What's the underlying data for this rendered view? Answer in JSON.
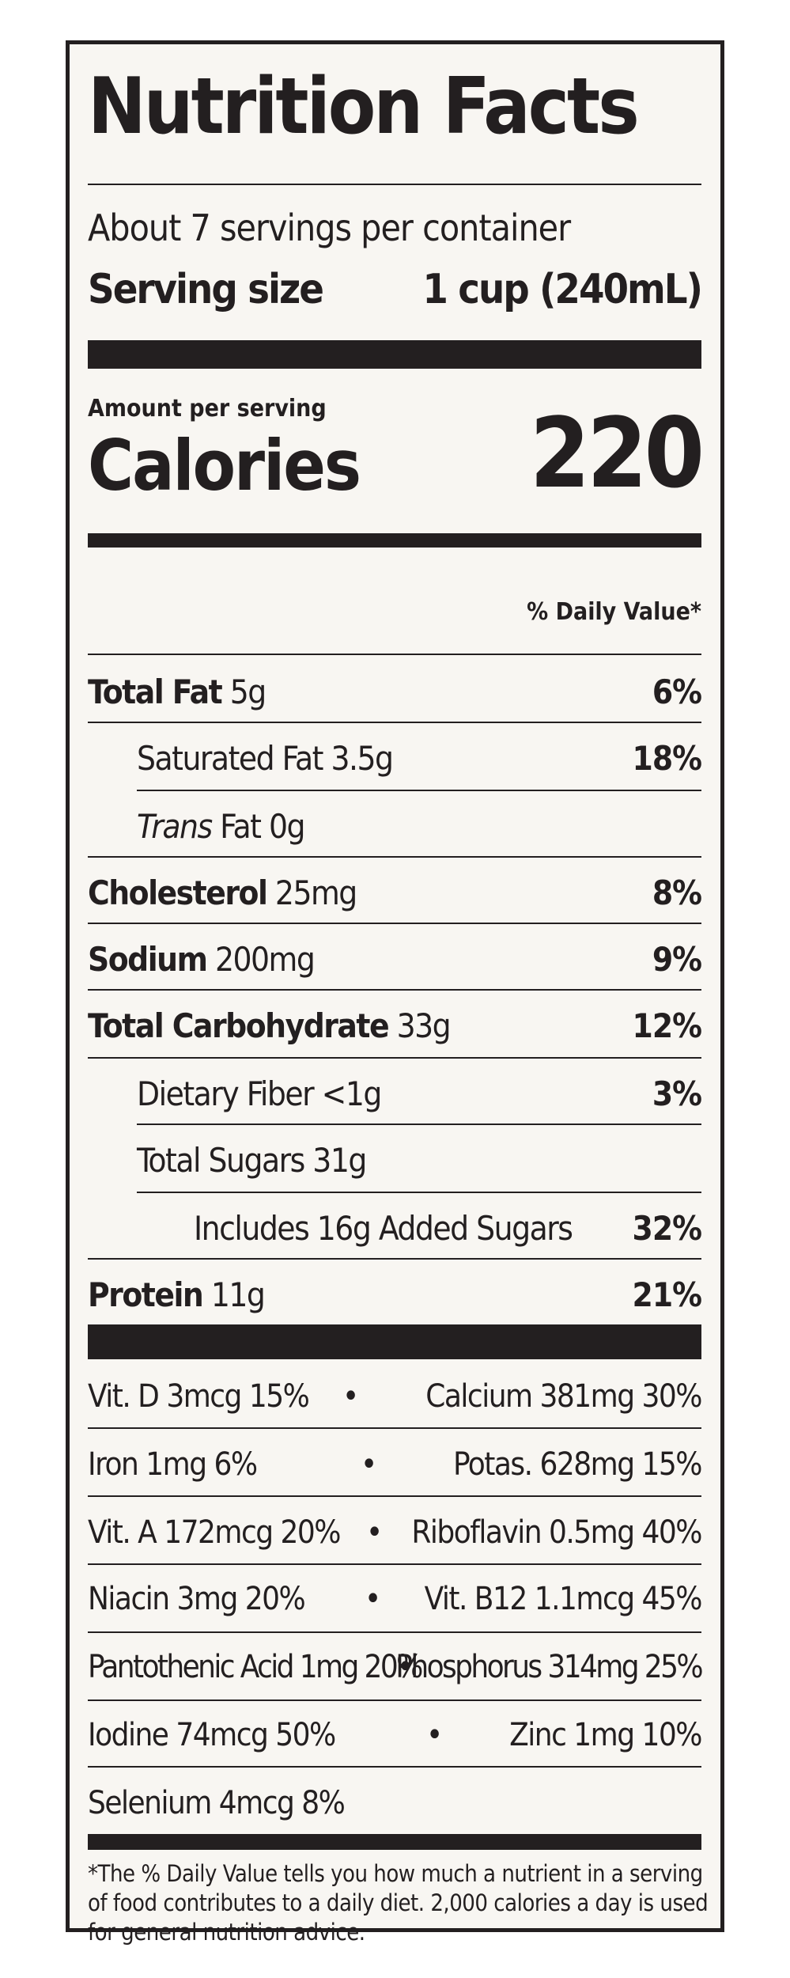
{
  "title": "Nutrition Facts",
  "servings_per_container": "About 7 servings per container",
  "serving_size": {
    "label": "Serving size",
    "value": "1 cup (240mL)"
  },
  "amount_per_serving": "Amount per serving",
  "calories": {
    "label": "Calories",
    "value": "220"
  },
  "daily_value_header": "% Daily Value*",
  "nutrients": [
    {
      "name": "Total Fat",
      "amount": " 5g",
      "dv": "6%"
    },
    {
      "name": "Saturated Fat",
      "amount": " 3.5g",
      "dv": "18%"
    },
    {
      "name": "Trans",
      "amount": " Fat 0g",
      "dv": ""
    },
    {
      "name": "Cholesterol",
      "amount": " 25mg",
      "dv": "8%"
    },
    {
      "name": "Sodium",
      "amount": " 200mg",
      "dv": "9%"
    },
    {
      "name": "Total Carbohydrate",
      "amount": " 33g",
      "dv": "12%"
    },
    {
      "name": "Dietary Fiber",
      "amount": " <1g",
      "dv": "3%"
    },
    {
      "name": "Total Sugars",
      "amount": " 31g",
      "dv": ""
    },
    {
      "name": "Includes 16g Added Sugars",
      "amount": "",
      "dv": "32%"
    },
    {
      "name": "Protein",
      "amount": " 11g",
      "dv": "21%"
    }
  ],
  "vitamins": [
    {
      "left": "Vit. D 3mcg 15%",
      "dot": "•",
      "right": "Calcium 381mg 30%"
    },
    {
      "left": "Iron 1mg 6%",
      "dot": "•",
      "right": "Potas. 628mg 15%"
    },
    {
      "left": "Vit. A 172mcg 20%",
      "dot": "•",
      "right": "Riboflavin 0.5mg 40%"
    },
    {
      "left": "Niacin 3mg 20%",
      "dot": "•",
      "right": "Vit. B12 1.1mcg 45%"
    },
    {
      "left": "Pantothenic Acid 1mg 20%",
      "dot": "•",
      "right": "Phosphorus 314mg 25%"
    },
    {
      "left": "Iodine 74mcg 50%",
      "dot": "•",
      "right": "Zinc 1mg 10%"
    },
    {
      "left": "Selenium 4mcg 8%",
      "dot": "",
      "right": ""
    }
  ],
  "footnote": "*The % Daily Value tells you how much a nutrient in a serving of food contributes to a daily diet. 2,000 calories a day is used for general nutrition advice."
}
